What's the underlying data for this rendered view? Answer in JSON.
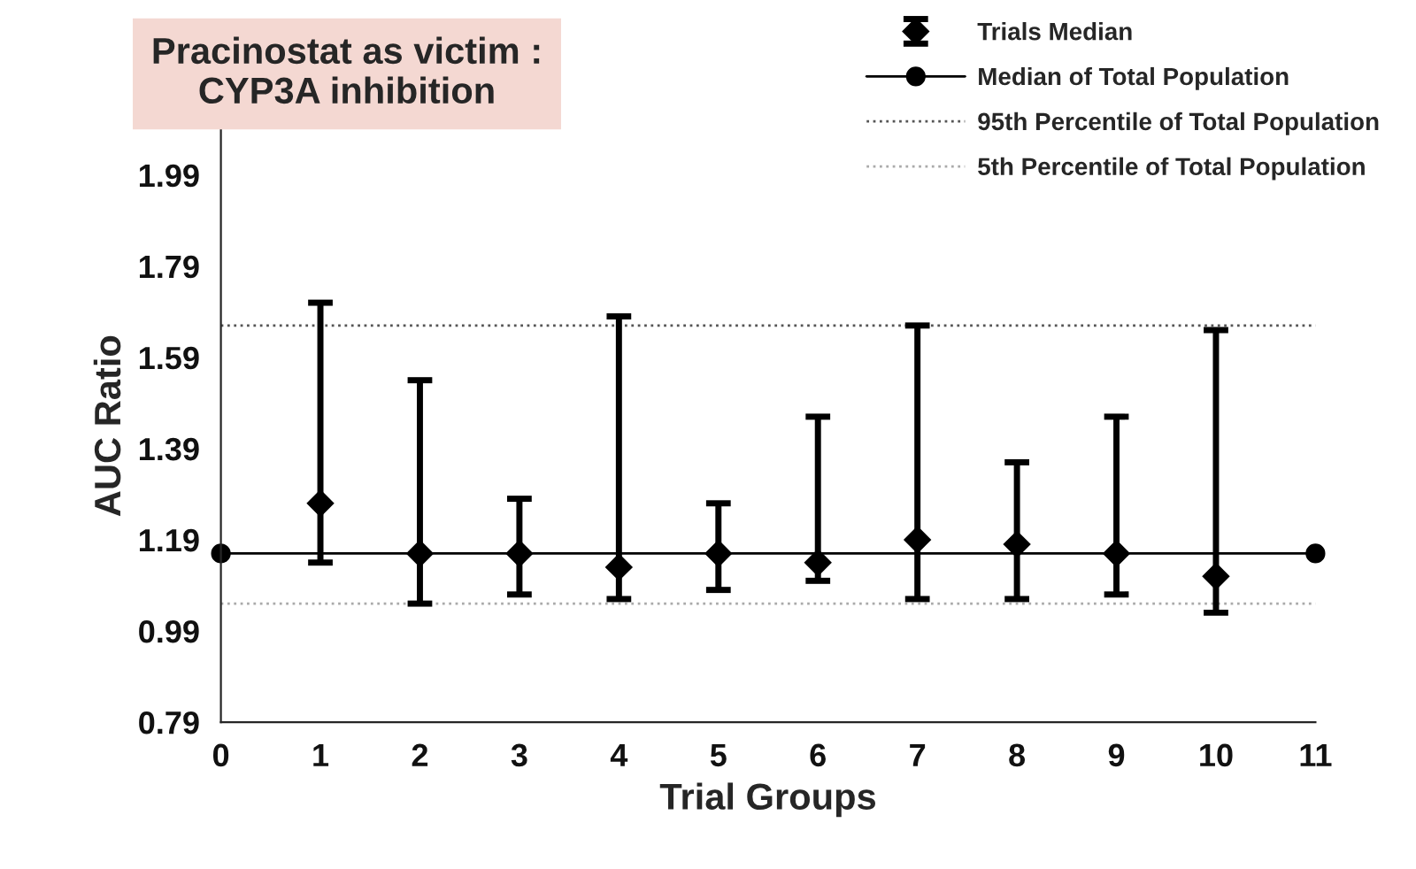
{
  "chart_data": {
    "type": "scatter",
    "title": "Pracinostat as victim :\nCYP3A inhibition",
    "xlabel": "Trial Groups",
    "ylabel": "AUC Ratio",
    "xlim": [
      0,
      11
    ],
    "xticks": [
      0,
      1,
      2,
      3,
      4,
      5,
      6,
      7,
      8,
      9,
      10,
      11
    ],
    "ylim": [
      0.79,
      2.09
    ],
    "yticks": [
      0.79,
      0.99,
      1.19,
      1.39,
      1.59,
      1.79,
      1.99
    ],
    "legend": "top right",
    "grid": false,
    "series": [
      {
        "name": "Trials Median",
        "marker": "diamond",
        "color": "#000000",
        "x": [
          1,
          2,
          3,
          4,
          5,
          6,
          7,
          8,
          9,
          10
        ],
        "values": [
          1.27,
          1.16,
          1.16,
          1.13,
          1.16,
          1.14,
          1.19,
          1.18,
          1.16,
          1.11
        ],
        "errors": [
          [
            1.14,
            1.71
          ],
          [
            1.05,
            1.54
          ],
          [
            1.07,
            1.28
          ],
          [
            1.06,
            1.68
          ],
          [
            1.08,
            1.27
          ],
          [
            1.1,
            1.46
          ],
          [
            1.06,
            1.66
          ],
          [
            1.06,
            1.36
          ],
          [
            1.07,
            1.46
          ],
          [
            1.03,
            1.65
          ]
        ]
      },
      {
        "name": "Median of Total Population",
        "type": "line",
        "marker": "circle",
        "line_style": "solid",
        "color": "#000000",
        "x": [
          0,
          11
        ],
        "values": [
          1.16,
          1.16
        ]
      },
      {
        "name": "95th Percentile of Total Population",
        "type": "line",
        "marker": "none",
        "line_style": "dotted",
        "color": "#555555",
        "x": [
          0,
          11
        ],
        "values": [
          1.66,
          1.66
        ]
      },
      {
        "name": "5th Percentile of Total Population",
        "type": "line",
        "marker": "none",
        "line_style": "dotted",
        "color": "#aaaaaa",
        "x": [
          0,
          11
        ],
        "values": [
          1.05,
          1.05
        ]
      }
    ]
  }
}
